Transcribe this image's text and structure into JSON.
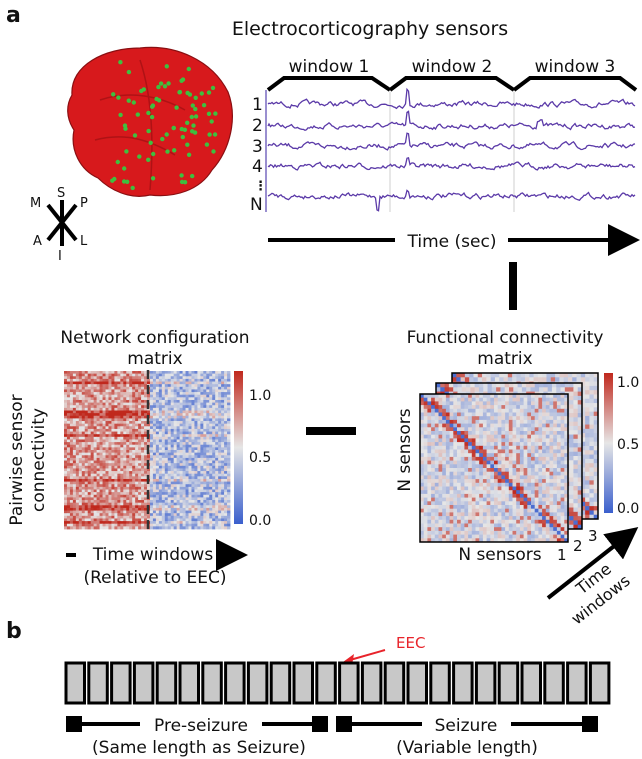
{
  "colors": {
    "brain": "#d7191c",
    "electrode": "#3fbf3f",
    "trace": "#5b3aa8",
    "eec_marker": "#e8232a",
    "window_box": "#c8c8c8",
    "cmap_low": "#3a5fcd",
    "cmap_mid": "#e6e6e6",
    "cmap_high": "#c0281d"
  },
  "panel_a": {
    "label": "a",
    "title": "Electrocorticography sensors",
    "compass": {
      "s": "S",
      "p": "P",
      "m": "M",
      "a": "A",
      "l": "L",
      "i": "I"
    },
    "windows": [
      "window 1",
      "window 2",
      "window 3"
    ],
    "channels": [
      "1",
      "2",
      "3",
      "4",
      "N"
    ],
    "time_axis": "Time (sec)",
    "network_title_1": "Network configuration",
    "network_title_2": "matrix",
    "network_ylabel_1": "Pairwise sensor",
    "network_ylabel_2": "connectivity",
    "network_xlabel": "Time windows",
    "network_xsub": "(Relative to EEC)",
    "functional_title_1": "Functional connectivity",
    "functional_title_2": "matrix",
    "functional_ylabel": "N sensors",
    "functional_xlabel": "N sensors",
    "stack_labels": [
      "1",
      "2",
      "3"
    ],
    "time_windows_1": "Time",
    "time_windows_2": "windows",
    "colorbar_ticks": [
      "1.0",
      "0.5",
      "0.0"
    ]
  },
  "panel_b": {
    "label": "b",
    "eec": "EEC",
    "box_count": 24,
    "eec_index": 12,
    "preseizure": "Pre-seizure",
    "preseizure_sub": "(Same length as Seizure)",
    "seizure": "Seizure",
    "seizure_sub": "(Variable length)"
  }
}
